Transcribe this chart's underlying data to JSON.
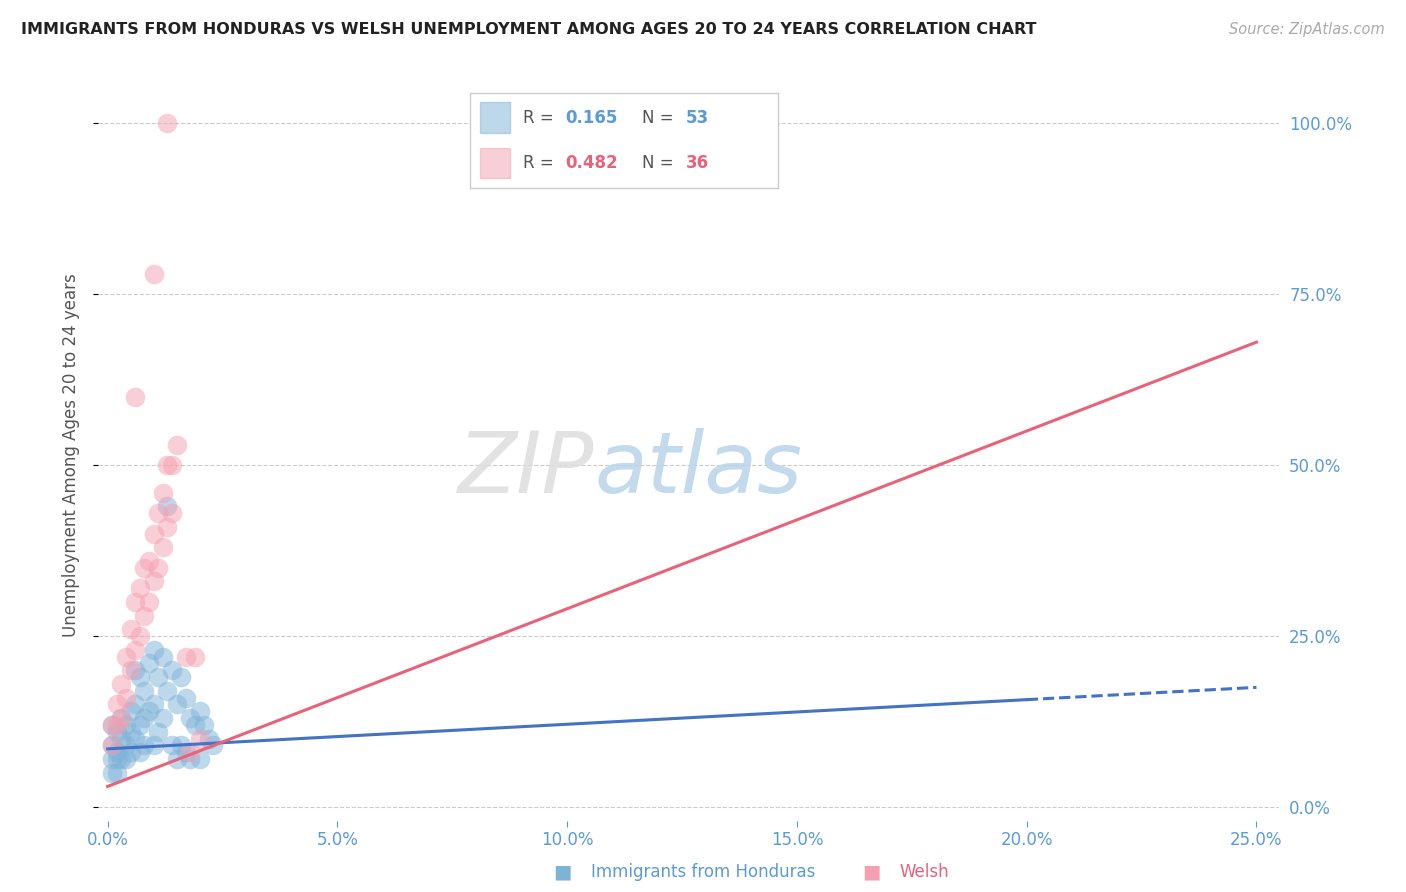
{
  "title": "IMMIGRANTS FROM HONDURAS VS WELSH UNEMPLOYMENT AMONG AGES 20 TO 24 YEARS CORRELATION CHART",
  "source": "Source: ZipAtlas.com",
  "ylabel": "Unemployment Among Ages 20 to 24 years",
  "legend_label1": "Immigrants from Honduras",
  "legend_label2": "Welsh",
  "R1": 0.165,
  "N1": 53,
  "R2": 0.482,
  "N2": 36,
  "xlim": [
    -0.002,
    0.255
  ],
  "ylim": [
    -0.02,
    1.05
  ],
  "xticks": [
    0.0,
    0.05,
    0.1,
    0.15,
    0.2,
    0.25
  ],
  "yticks": [
    0.0,
    0.25,
    0.5,
    0.75,
    1.0
  ],
  "color_blue": "#7EB3D8",
  "color_pink": "#F4A0B0",
  "color_trendblue": "#4472C4",
  "color_trendpink": "#E8627A",
  "color_axis_labels": "#5B9BD5",
  "watermark_zip": "ZIP",
  "watermark_atlas": "atlas",
  "blue_scatter": [
    [
      0.001,
      0.12
    ],
    [
      0.001,
      0.09
    ],
    [
      0.001,
      0.07
    ],
    [
      0.001,
      0.05
    ],
    [
      0.002,
      0.11
    ],
    [
      0.002,
      0.08
    ],
    [
      0.002,
      0.07
    ],
    [
      0.002,
      0.05
    ],
    [
      0.003,
      0.13
    ],
    [
      0.003,
      0.1
    ],
    [
      0.003,
      0.07
    ],
    [
      0.004,
      0.12
    ],
    [
      0.004,
      0.09
    ],
    [
      0.004,
      0.07
    ],
    [
      0.005,
      0.14
    ],
    [
      0.005,
      0.11
    ],
    [
      0.005,
      0.08
    ],
    [
      0.006,
      0.2
    ],
    [
      0.006,
      0.15
    ],
    [
      0.006,
      0.1
    ],
    [
      0.007,
      0.19
    ],
    [
      0.007,
      0.12
    ],
    [
      0.007,
      0.08
    ],
    [
      0.008,
      0.17
    ],
    [
      0.008,
      0.13
    ],
    [
      0.008,
      0.09
    ],
    [
      0.009,
      0.21
    ],
    [
      0.009,
      0.14
    ],
    [
      0.01,
      0.23
    ],
    [
      0.01,
      0.15
    ],
    [
      0.01,
      0.09
    ],
    [
      0.011,
      0.19
    ],
    [
      0.011,
      0.11
    ],
    [
      0.012,
      0.22
    ],
    [
      0.012,
      0.13
    ],
    [
      0.013,
      0.44
    ],
    [
      0.013,
      0.17
    ],
    [
      0.014,
      0.2
    ],
    [
      0.014,
      0.09
    ],
    [
      0.015,
      0.15
    ],
    [
      0.015,
      0.07
    ],
    [
      0.016,
      0.19
    ],
    [
      0.016,
      0.09
    ],
    [
      0.017,
      0.16
    ],
    [
      0.017,
      0.08
    ],
    [
      0.018,
      0.13
    ],
    [
      0.018,
      0.07
    ],
    [
      0.019,
      0.12
    ],
    [
      0.02,
      0.14
    ],
    [
      0.02,
      0.07
    ],
    [
      0.021,
      0.12
    ],
    [
      0.022,
      0.1
    ],
    [
      0.023,
      0.09
    ]
  ],
  "pink_scatter": [
    [
      0.001,
      0.12
    ],
    [
      0.001,
      0.09
    ],
    [
      0.002,
      0.15
    ],
    [
      0.002,
      0.12
    ],
    [
      0.003,
      0.18
    ],
    [
      0.003,
      0.13
    ],
    [
      0.004,
      0.22
    ],
    [
      0.004,
      0.16
    ],
    [
      0.005,
      0.26
    ],
    [
      0.005,
      0.2
    ],
    [
      0.006,
      0.3
    ],
    [
      0.006,
      0.23
    ],
    [
      0.007,
      0.32
    ],
    [
      0.007,
      0.25
    ],
    [
      0.008,
      0.35
    ],
    [
      0.008,
      0.28
    ],
    [
      0.009,
      0.36
    ],
    [
      0.009,
      0.3
    ],
    [
      0.01,
      0.4
    ],
    [
      0.01,
      0.33
    ],
    [
      0.011,
      0.43
    ],
    [
      0.011,
      0.35
    ],
    [
      0.012,
      0.46
    ],
    [
      0.012,
      0.38
    ],
    [
      0.013,
      0.5
    ],
    [
      0.013,
      0.41
    ],
    [
      0.014,
      0.5
    ],
    [
      0.014,
      0.43
    ],
    [
      0.015,
      0.53
    ],
    [
      0.017,
      0.22
    ],
    [
      0.018,
      0.08
    ],
    [
      0.006,
      0.6
    ],
    [
      0.01,
      0.78
    ],
    [
      0.013,
      1.0
    ],
    [
      0.019,
      0.22
    ],
    [
      0.02,
      0.1
    ]
  ],
  "blue_trend_x": [
    0.0,
    0.25
  ],
  "blue_trend_y": [
    0.085,
    0.175
  ],
  "blue_trend_style": "solid_to_dashed",
  "pink_trend_x": [
    0.0,
    0.25
  ],
  "pink_trend_y": [
    0.03,
    0.68
  ]
}
